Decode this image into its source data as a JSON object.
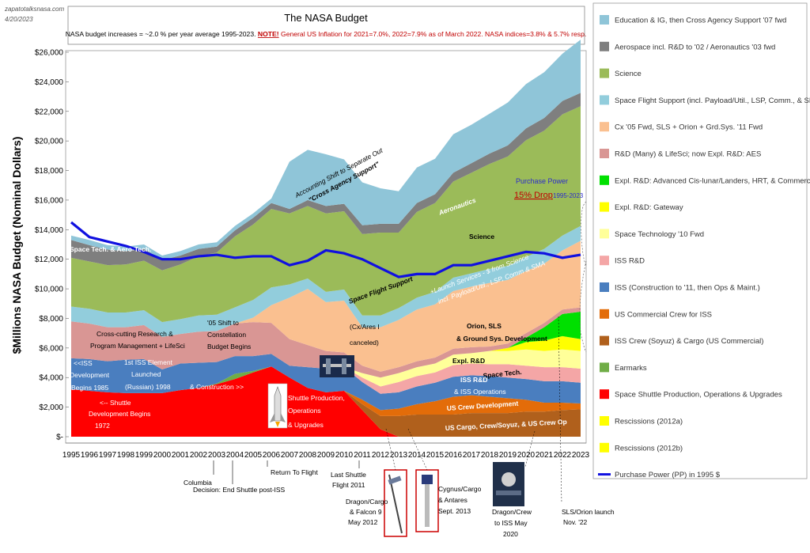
{
  "meta": {
    "source": "zapatotalksnasa.com",
    "date": "4/20/2023"
  },
  "chart_data": {
    "type": "area",
    "title": "The NASA Budget",
    "subtitle_black": "NASA budget increases = ~2.0 % per year average 1995-2023.",
    "subtitle_note": "NOTE!",
    "subtitle_red": "General US Inflation for 2021=7.0%, 2022=7.9% as of March 2022. NASA indices=3.8% & 5.7% resp.",
    "ylabel": "$Millions NASA Budget (Nominal Dollars)",
    "xlabel": "",
    "ylim": [
      0,
      26000
    ],
    "yticks": [
      "$-",
      "$2,000",
      "$4,000",
      "$6,000",
      "$8,000",
      "$10,000",
      "$12,000",
      "$14,000",
      "$16,000",
      "$18,000",
      "$20,000",
      "$22,000",
      "$24,000",
      "$26,000"
    ],
    "x": [
      1995,
      1996,
      1997,
      1998,
      1999,
      2000,
      2001,
      2002,
      2003,
      2004,
      2005,
      2006,
      2007,
      2008,
      2009,
      2010,
      2011,
      2012,
      2013,
      2014,
      2015,
      2016,
      2017,
      2018,
      2019,
      2020,
      2021,
      2022,
      2023
    ],
    "series": [
      {
        "name": "Space Shuttle Production, Operations & Upgrades",
        "color": "#ff0000",
        "values": [
          3200,
          3100,
          3000,
          2950,
          2950,
          2950,
          3150,
          3300,
          3550,
          3900,
          4350,
          4750,
          4000,
          3300,
          3000,
          3100,
          1800,
          500,
          0,
          0,
          0,
          0,
          0,
          0,
          0,
          0,
          0,
          0,
          0
        ]
      },
      {
        "name": "Earmarks",
        "color": "#70ad47",
        "values": [
          0,
          0,
          0,
          0,
          0,
          0,
          0,
          0,
          50,
          350,
          100,
          0,
          0,
          0,
          0,
          0,
          0,
          0,
          0,
          0,
          0,
          0,
          0,
          0,
          0,
          0,
          0,
          0,
          0
        ]
      },
      {
        "name": "ISS Crew (Soyuz) & Cargo (US Commercial)",
        "color": "#b0601c",
        "values": [
          0,
          0,
          0,
          0,
          0,
          0,
          0,
          0,
          0,
          0,
          0,
          0,
          0,
          0,
          0,
          0,
          400,
          900,
          1400,
          1500,
          1500,
          1500,
          1600,
          1600,
          1600,
          1700,
          1700,
          1800,
          1850
        ]
      },
      {
        "name": "US Commercial Crew for ISS",
        "color": "#e36c09",
        "values": [
          0,
          0,
          0,
          0,
          0,
          0,
          0,
          0,
          0,
          0,
          0,
          0,
          0,
          0,
          0,
          0,
          300,
          400,
          500,
          700,
          900,
          1200,
          1200,
          1100,
          1000,
          800,
          600,
          500,
          400
        ]
      },
      {
        "name": "ISS (Construction to '11, then Ops & Maint.)",
        "color": "#4a7ebf",
        "values": [
          2100,
          2150,
          2100,
          2250,
          2300,
          1600,
          1800,
          1700,
          1450,
          1200,
          1000,
          850,
          800,
          1400,
          1600,
          1600,
          1200,
          1100,
          1100,
          1200,
          1250,
          1350,
          1350,
          1400,
          1400,
          1400,
          1450,
          1450,
          1400
        ]
      },
      {
        "name": "ISS R&D",
        "color": "#f4a6a6",
        "values": [
          0,
          0,
          0,
          0,
          0,
          0,
          0,
          0,
          0,
          0,
          0,
          0,
          0,
          0,
          0,
          0,
          300,
          500,
          700,
          700,
          700,
          800,
          800,
          800,
          900,
          900,
          950,
          950,
          950
        ]
      },
      {
        "name": "Space Technology '10 Fwd",
        "color": "#ffff99",
        "values": [
          0,
          0,
          0,
          0,
          0,
          0,
          0,
          0,
          0,
          0,
          0,
          0,
          0,
          0,
          0,
          0,
          300,
          600,
          600,
          600,
          600,
          700,
          700,
          900,
          900,
          1100,
          1100,
          1200,
          1200
        ]
      },
      {
        "name": "Expl. R&D: Gateway",
        "color": "#ffff00",
        "values": [
          0,
          0,
          0,
          0,
          0,
          0,
          0,
          0,
          0,
          0,
          0,
          0,
          0,
          0,
          0,
          0,
          0,
          0,
          0,
          0,
          0,
          0,
          0,
          0,
          200,
          500,
          700,
          900,
          800
        ]
      },
      {
        "name": "Expl. R&D: Advanced Cis-lunar/Landers, HRT, & Commercial LEO",
        "color": "#00e000",
        "values": [
          0,
          0,
          0,
          0,
          0,
          0,
          0,
          0,
          0,
          0,
          0,
          0,
          0,
          0,
          0,
          0,
          0,
          0,
          0,
          0,
          0,
          0,
          0,
          0,
          0,
          300,
          900,
          1500,
          1850
        ]
      },
      {
        "name": "R&D (Many) & LifeSci; now Expl. R&D: AES",
        "color": "#d99694",
        "values": [
          2500,
          2400,
          2300,
          2200,
          2300,
          2200,
          2000,
          2100,
          2100,
          2200,
          2300,
          2100,
          1800,
          1500,
          1200,
          1000,
          500,
          400,
          400,
          400,
          400,
          400,
          400,
          300,
          300,
          300,
          300,
          300,
          300
        ]
      },
      {
        "name": "Cx '05 Fwd, SLS + Orion + Grd.Sys. '11 Fwd",
        "color": "#fac090",
        "values": [
          0,
          0,
          0,
          0,
          0,
          0,
          0,
          0,
          0,
          0,
          300,
          1200,
          2800,
          3800,
          3300,
          3500,
          2600,
          3000,
          3200,
          3500,
          3600,
          3900,
          4100,
          4300,
          4300,
          4200,
          4000,
          4000,
          4500
        ]
      },
      {
        "name": "Space Flight Support (incl. Payload/Util., LSP, Comm., & SMA)",
        "color": "#92cddc",
        "values": [
          1000,
          1000,
          1000,
          1000,
          1000,
          1000,
          1000,
          1100,
          1100,
          1100,
          1200,
          1200,
          900,
          700,
          700,
          750,
          800,
          800,
          800,
          800,
          850,
          900,
          900,
          950,
          950,
          950,
          1000,
          1000,
          1000
        ]
      },
      {
        "name": "Science",
        "color": "#9bbb59",
        "values": [
          3300,
          3200,
          3200,
          3250,
          3350,
          3500,
          3700,
          4000,
          4200,
          4800,
          5100,
          5300,
          4800,
          4900,
          5300,
          5300,
          5500,
          5600,
          5100,
          5800,
          6000,
          6500,
          6800,
          7100,
          7400,
          7900,
          8000,
          8200,
          8100
        ]
      },
      {
        "name": "Aerospace incl. R&D to '02 / Aeronautics '03 fwd",
        "color": "#7f7f7f",
        "values": [
          1200,
          1100,
          1050,
          900,
          800,
          700,
          600,
          500,
          400,
          400,
          450,
          400,
          300,
          400,
          500,
          500,
          600,
          600,
          600,
          600,
          600,
          600,
          650,
          700,
          750,
          800,
          850,
          900,
          900
        ]
      },
      {
        "name": "Education & IG, then Cross Agency Support '07 fwd",
        "color": "#8fc5d8",
        "values": [
          300,
          350,
          300,
          300,
          300,
          300,
          300,
          300,
          300,
          300,
          300,
          300,
          3200,
          3400,
          3500,
          3000,
          2900,
          2400,
          2200,
          2400,
          2400,
          2600,
          2600,
          2700,
          2900,
          3000,
          3100,
          3200,
          3600
        ]
      }
    ],
    "extra_legend": [
      {
        "name": "Rescissions (2012a)",
        "color": "#ffff00"
      },
      {
        "name": "Rescissions (2012b)",
        "color": "#ffff00"
      }
    ],
    "line": {
      "name": "Purchase Power (PP) in 1995 $",
      "color": "#1010e0",
      "values": [
        14500,
        13500,
        13200,
        12900,
        12500,
        12000,
        12000,
        12200,
        12300,
        12100,
        12200,
        12200,
        11600,
        11900,
        12600,
        12400,
        12000,
        11400,
        10800,
        11000,
        11000,
        11600,
        11600,
        11900,
        12200,
        12500,
        12400,
        12100,
        12300
      ]
    },
    "annotations": [
      {
        "id": "a1",
        "text": "Space Tech. & Aero-Tech."
      },
      {
        "id": "a2",
        "text": "Aerospace"
      },
      {
        "id": "a3",
        "text": "Accounting Shift to Separate Out"
      },
      {
        "id": "a4",
        "text": "\"Cross Agency Support\""
      },
      {
        "id": "a5",
        "text": "Aeronautics"
      },
      {
        "id": "a6",
        "text": "Purchase Power"
      },
      {
        "id": "a7",
        "text": "15% Drop"
      },
      {
        "id": "a8",
        "text": "1995-2023"
      },
      {
        "id": "a9",
        "text": "Science"
      },
      {
        "id": "a10",
        "text": "Cross-cutting Research &"
      },
      {
        "id": "a11",
        "text": "Program Management + LifeSci"
      },
      {
        "id": "a12",
        "text": "'05 Shift to"
      },
      {
        "id": "a13",
        "text": "Constellation"
      },
      {
        "id": "a14",
        "text": "Budget Begins"
      },
      {
        "id": "a15",
        "text": "(Cx/Ares I"
      },
      {
        "id": "a16",
        "text": "canceled)"
      },
      {
        "id": "a17",
        "text": "Space Flight Support"
      },
      {
        "id": "a18",
        "text": "+Launch Services - $ from Science"
      },
      {
        "id": "a19",
        "text": "incl. Payload/Util., LSP, Comm & SMA"
      },
      {
        "id": "a20",
        "text": "Orion, SLS"
      },
      {
        "id": "a21",
        "text": "& Ground Sys. Development"
      },
      {
        "id": "a22",
        "text": "<<ISS"
      },
      {
        "id": "a23",
        "text": "Development"
      },
      {
        "id": "a24",
        "text": "Begins 1985"
      },
      {
        "id": "a25",
        "text": "1st ISS Element"
      },
      {
        "id": "a26",
        "text": "Launched"
      },
      {
        "id": "a27",
        "text": "(Russian) 1998"
      },
      {
        "id": "a28",
        "text": "& Construction >>"
      },
      {
        "id": "a29",
        "text": "Expl. R&D"
      },
      {
        "id": "a30",
        "text": "Space Tech."
      },
      {
        "id": "a31",
        "text": "ISS R&D"
      },
      {
        "id": "a32",
        "text": "& ISS Operations"
      },
      {
        "id": "a33",
        "text": "<-- Shuttle"
      },
      {
        "id": "a34",
        "text": "Development Begins"
      },
      {
        "id": "a35",
        "text": "1972"
      },
      {
        "id": "a36",
        "text": "Shuttle Production,"
      },
      {
        "id": "a37",
        "text": "Operations"
      },
      {
        "id": "a38",
        "text": "& Upgrades"
      },
      {
        "id": "a39",
        "text": "US Crew Development"
      },
      {
        "id": "a40",
        "text": "US Cargo, Crew/Soyuz, & US Crew  Op"
      }
    ],
    "callouts": [
      {
        "id": "c1",
        "text": "Columbia"
      },
      {
        "id": "c2",
        "text": "Decision: End Shuttle post-ISS"
      },
      {
        "id": "c3",
        "text": "Return To Flight"
      },
      {
        "id": "c4",
        "text": "Last Shuttle"
      },
      {
        "id": "c5",
        "text": "Flight 2011"
      },
      {
        "id": "c6",
        "text": "Dragon/Cargo"
      },
      {
        "id": "c7",
        "text": "& Falcon 9"
      },
      {
        "id": "c8",
        "text": "May 2012"
      },
      {
        "id": "c9",
        "text": "Cygnus/Cargo"
      },
      {
        "id": "c10",
        "text": "& Antares"
      },
      {
        "id": "c11",
        "text": "Sept. 2013"
      },
      {
        "id": "c12",
        "text": "Dragon/Crew"
      },
      {
        "id": "c13",
        "text": "to ISS May"
      },
      {
        "id": "c14",
        "text": "2020"
      },
      {
        "id": "c15",
        "text": "SLS/Orion launch"
      },
      {
        "id": "c16",
        "text": "Nov. '22"
      }
    ]
  }
}
